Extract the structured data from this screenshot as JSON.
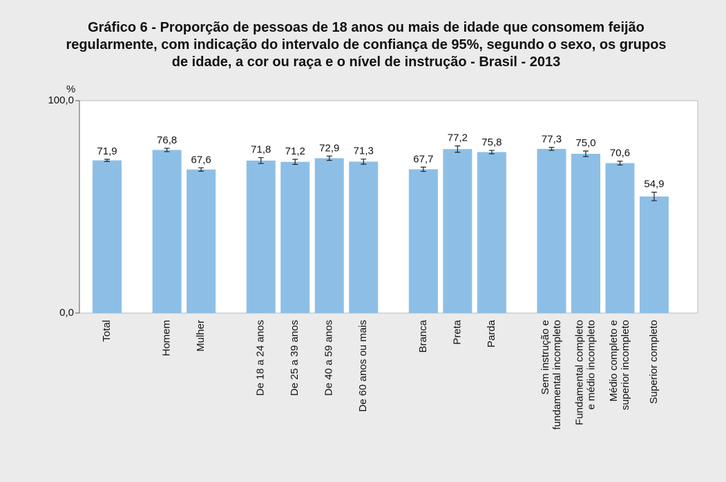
{
  "chart_data": {
    "type": "bar",
    "title": "Gráfico 6 - Proporção de pessoas de 18 anos ou mais de idade que consomem feijão regularmente, com indicação do intervalo de confiança de 95%, segundo o sexo, os grupos de idade, a cor ou raça e o nível de instrução - Brasil - 2013",
    "y_unit": "%",
    "categories": [
      [
        "Total"
      ],
      null,
      [
        "Homem"
      ],
      [
        "Mulher"
      ],
      null,
      [
        "De 18 a 24 anos"
      ],
      [
        "De 25 a 39 anos"
      ],
      [
        "De 40 a 59 anos"
      ],
      [
        "De 60 anos ou mais"
      ],
      null,
      [
        "Branca"
      ],
      [
        "Preta"
      ],
      [
        "Parda"
      ],
      null,
      [
        "Sem instrução e",
        "fundamental incompleto"
      ],
      [
        "Fundamental completo",
        "e médio incompleto"
      ],
      [
        "Médio completo e",
        "superior incompleto"
      ],
      [
        "Superior completo"
      ]
    ],
    "values": [
      71.9,
      null,
      76.8,
      67.6,
      null,
      71.8,
      71.2,
      72.9,
      71.3,
      null,
      67.7,
      77.2,
      75.8,
      null,
      77.3,
      75.0,
      70.6,
      54.9
    ],
    "value_labels": [
      "71,9",
      null,
      "76,8",
      "67,6",
      null,
      "71,8",
      "71,2",
      "72,9",
      "71,3",
      null,
      "67,7",
      "77,2",
      "75,8",
      null,
      "77,3",
      "75,0",
      "70,6",
      "54,9"
    ],
    "errors": [
      0.5,
      null,
      0.8,
      0.8,
      null,
      1.4,
      1.2,
      1.0,
      1.2,
      null,
      1.0,
      1.5,
      0.8,
      null,
      0.7,
      1.3,
      0.9,
      2.0
    ],
    "color": "#8dbfe6",
    "ylim": [
      0,
      100
    ],
    "yticks": [
      {
        "value": 0,
        "label": "0,0"
      },
      {
        "value": 100,
        "label": "100,0"
      }
    ]
  }
}
